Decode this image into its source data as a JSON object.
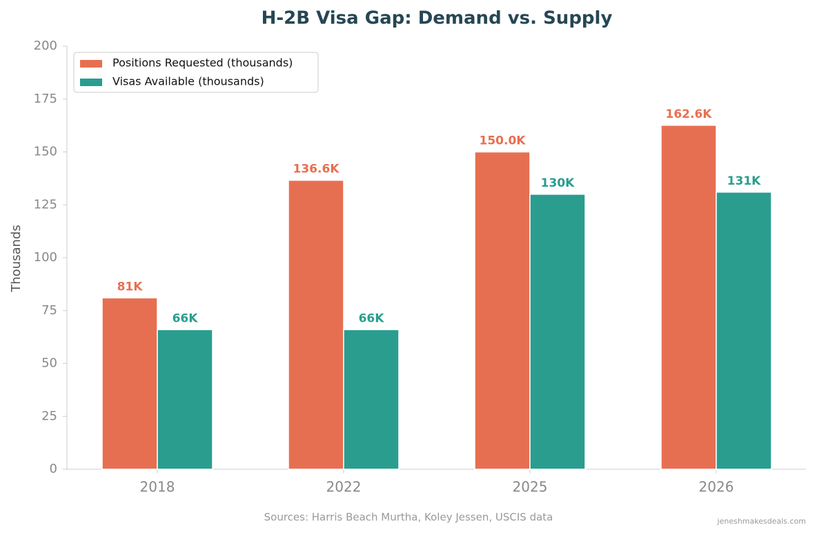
{
  "chart_data": {
    "type": "bar",
    "title": "H-2B Visa Gap: Demand vs. Supply",
    "y_label": "Thousands",
    "source": "Sources: Harris Beach Murtha, Koley Jessen, USCIS data",
    "watermark": "jeneshmakesdeals.com",
    "categories": [
      "2018",
      "2022",
      "2025",
      "2026"
    ],
    "series": [
      {
        "name": "Positions Requested (thousands)",
        "color": "#e76f51",
        "values": [
          81,
          136.6,
          150.0,
          162.6
        ],
        "value_labels": [
          "81K",
          "136.6K",
          "150.0K",
          "162.6K"
        ]
      },
      {
        "name": "Visas Available (thousands)",
        "color": "#2a9d8f",
        "values": [
          66,
          66,
          130,
          131
        ],
        "value_labels": [
          "66K",
          "66K",
          "130K",
          "131K"
        ]
      }
    ],
    "ylim": [
      0,
      200
    ],
    "yticks": [
      0,
      25,
      50,
      75,
      100,
      125,
      150,
      175,
      200
    ],
    "grid": false,
    "legend": "upper left"
  }
}
